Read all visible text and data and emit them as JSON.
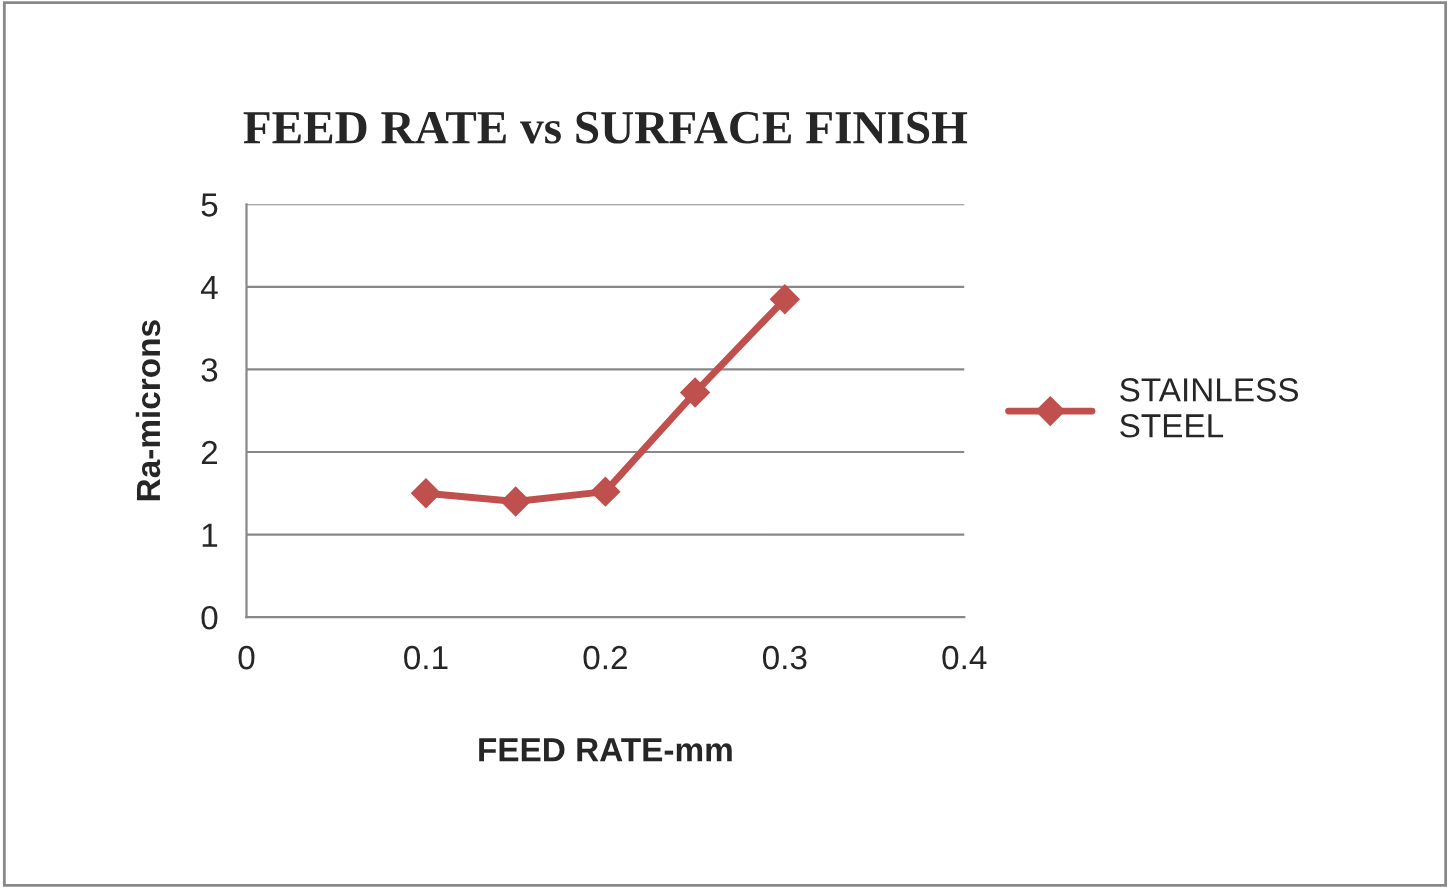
{
  "chart_data": {
    "type": "line",
    "title": "FEED RATE vs SURFACE FINISH",
    "xlabel": "FEED RATE-mm",
    "ylabel": "Ra-microns",
    "x": [
      0.1,
      0.15,
      0.2,
      0.25,
      0.3
    ],
    "series": [
      {
        "name": "STAINLESS STEEL",
        "color": "#c0504d",
        "values": [
          1.5,
          1.4,
          1.52,
          2.72,
          3.85
        ]
      }
    ],
    "xlim": [
      0,
      0.4
    ],
    "xticks": [
      0,
      0.1,
      0.2,
      0.3,
      0.4
    ],
    "ylim": [
      0,
      5
    ],
    "yticks": [
      0,
      1,
      2,
      3,
      4,
      5
    ],
    "grid": "y",
    "legend": "right",
    "marker": "diamond",
    "line_style": "solid"
  }
}
